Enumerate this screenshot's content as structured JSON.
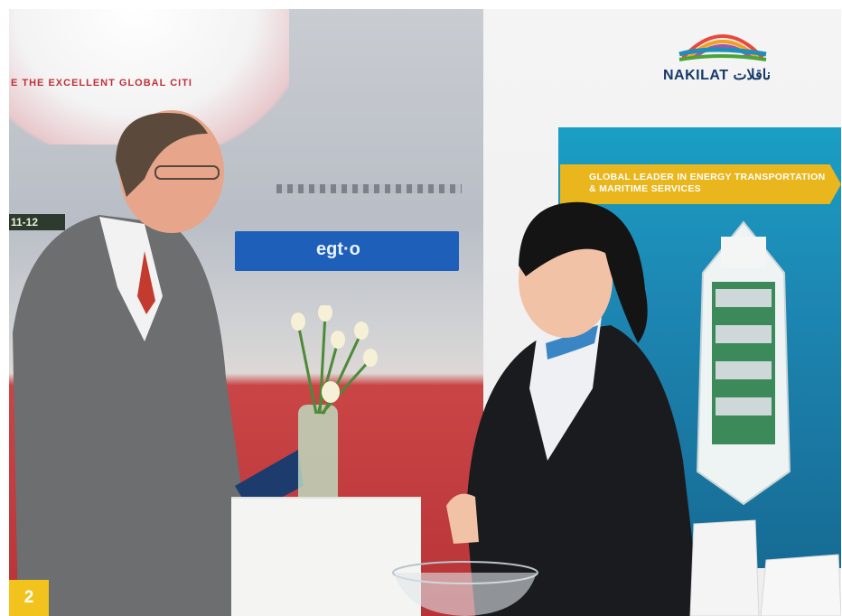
{
  "photo": {
    "description_tag": "exhibition-booth-photo",
    "background_wall_text": "E THE EXCELLENT GLOBAL CITI",
    "hall_marker": "11-12",
    "booth_sign_text": "egt·o"
  },
  "brand": {
    "logo_text": "NAKILAT ناقلات",
    "colors": {
      "navy": "#163a6b",
      "teal": "#1a9fc4",
      "yellow": "#e9b61d",
      "red_carpet": "#c94546"
    }
  },
  "poster": {
    "banner_line1": "GLOBAL LEADER IN ENERGY TRANSPORTATION",
    "banner_line2": "& MARITIME SERVICES"
  },
  "badge": {
    "number": "2",
    "color": "#f2c31c"
  }
}
